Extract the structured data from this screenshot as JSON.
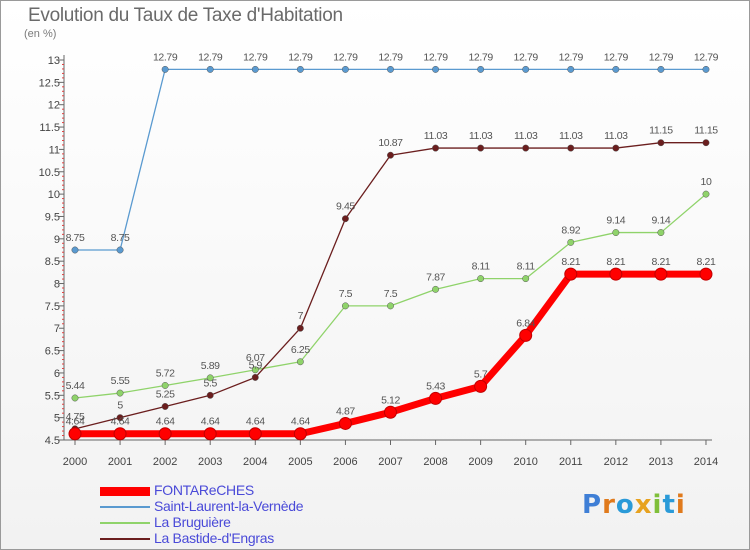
{
  "header": {
    "title": "Evolution du Taux de Taxe d'Habitation",
    "unit": "(en %)"
  },
  "logo": {
    "text": "Proxiti"
  },
  "chart_data": {
    "type": "line",
    "title": "Evolution du Taux de Taxe d'Habitation",
    "ylabel": "(en %)",
    "xlabel": "",
    "x": [
      "2000",
      "2001",
      "2002",
      "2003",
      "2004",
      "2005",
      "2006",
      "2007",
      "2008",
      "2009",
      "2010",
      "2011",
      "2012",
      "2013",
      "2014"
    ],
    "ylim": [
      4.5,
      13
    ],
    "yticks": [
      "4.5",
      "5",
      "5.5",
      "6",
      "6.5",
      "7",
      "7.5",
      "8",
      "8.5",
      "9",
      "9.5",
      "10",
      "10.5",
      "11",
      "11.5",
      "12",
      "12.5",
      "13"
    ],
    "grid": false,
    "legend_position": "bottom-left",
    "series": [
      {
        "name": "FONTAReCHES",
        "color": "#ff0000",
        "values": [
          4.64,
          4.64,
          4.64,
          4.64,
          4.64,
          4.64,
          4.87,
          5.12,
          5.43,
          5.7,
          6.84,
          8.21,
          8.21,
          8.21,
          8.21
        ],
        "labels": [
          "4.64",
          "4.64",
          "4.64",
          "4.64",
          "4.64",
          "4.64",
          "4.87",
          "5.12",
          "5.43",
          "5.7",
          "6.84",
          "8.21",
          "8.21",
          "8.21",
          "8.21"
        ]
      },
      {
        "name": "Saint-Laurent-la-Vernède",
        "color": "#5a9ad0",
        "values": [
          8.75,
          8.75,
          12.79,
          12.79,
          12.79,
          12.79,
          12.79,
          12.79,
          12.79,
          12.79,
          12.79,
          12.79,
          12.79,
          12.79,
          12.79
        ],
        "labels": [
          "8.75",
          "8.75",
          "12.79",
          "12.79",
          "12.79",
          "12.79",
          "12.79",
          "12.79",
          "12.79",
          "12.79",
          "12.79",
          "12.79",
          "12.79",
          "12.79",
          "12.79"
        ]
      },
      {
        "name": "La Bruguière",
        "color": "#8fd36a",
        "values": [
          5.44,
          5.55,
          5.72,
          5.89,
          6.07,
          6.25,
          7.5,
          7.5,
          7.87,
          8.11,
          8.11,
          8.92,
          9.14,
          9.14,
          10
        ],
        "labels": [
          "5.44",
          "5.55",
          "5.72",
          "5.89",
          "6.07",
          "6.25",
          "7.5",
          "7.5",
          "7.87",
          "8.11",
          "8.11",
          "8.92",
          "9.14",
          "9.14",
          "10"
        ]
      },
      {
        "name": "La Bastide-d'Engras",
        "color": "#6b1e1e",
        "values": [
          4.75,
          5,
          5.25,
          5.5,
          5.9,
          7,
          9.45,
          10.87,
          11.03,
          11.03,
          11.03,
          11.03,
          11.03,
          11.15,
          11.15
        ],
        "labels": [
          "4.75",
          "5",
          "5.25",
          "5.5",
          "5.9",
          "7",
          "9.45",
          "10.87",
          "11.03",
          "11.03",
          "11.03",
          "11.03",
          "11.03",
          "11.15",
          "11.15"
        ]
      }
    ]
  }
}
